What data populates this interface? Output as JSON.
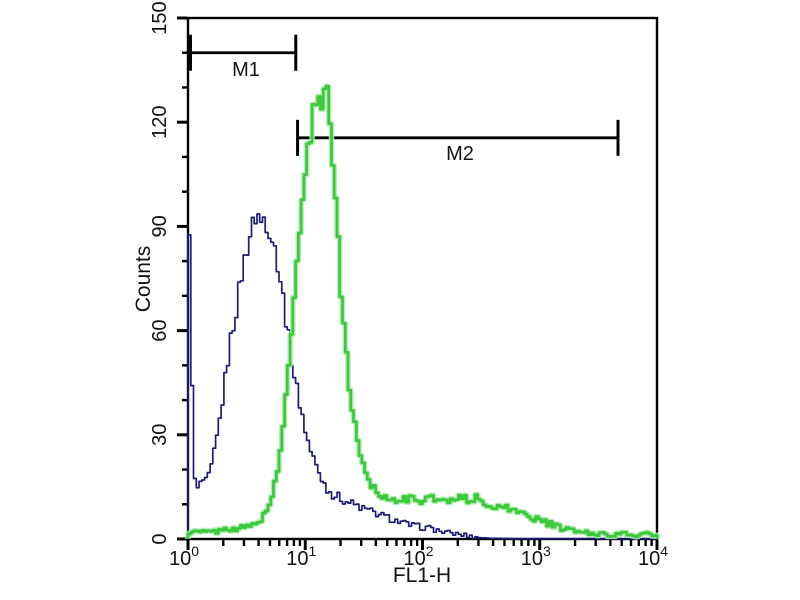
{
  "page": {
    "title": "Flow cytometry overlay histogram",
    "background": "#ffffff"
  },
  "chart_data": {
    "type": "line",
    "subtype": "flow-cytometry-overlay-histogram",
    "title": "",
    "xlabel": "FL1-H",
    "ylabel": "Counts",
    "x_scale": "log10",
    "x_range": [
      1,
      10000
    ],
    "x_tick_base": "10",
    "x_tick_exponents": [
      "0",
      "1",
      "2",
      "3",
      "4"
    ],
    "y_range": [
      0,
      150
    ],
    "y_ticks": [
      0,
      30,
      60,
      90,
      120,
      150
    ],
    "y_minor_step": 10,
    "grid": false,
    "legend": "none",
    "frame_color": "#000000",
    "markers": [
      {
        "label": "M1",
        "x_start": 1.05,
        "x_end": 8.3,
        "y_counts": 140
      },
      {
        "label": "M2",
        "x_start": 8.6,
        "x_end": 4650,
        "y_counts": 115.5
      }
    ],
    "series": [
      {
        "name": "blue-histogram",
        "color": "#1c1c78",
        "halo": null,
        "width": 1.7,
        "jitter": 1.0,
        "seed": 1,
        "ymax": 96,
        "peak": {
          "x": 4,
          "counts": 94
        },
        "axis_spike_counts": 86,
        "points": [
          [
            1.0,
            85
          ],
          [
            1.05,
            86
          ],
          [
            1.09,
            40
          ],
          [
            1.13,
            17
          ],
          [
            1.22,
            14
          ],
          [
            1.32,
            17
          ],
          [
            1.45,
            16
          ],
          [
            1.6,
            21
          ],
          [
            1.75,
            28
          ],
          [
            1.9,
            36
          ],
          [
            2.1,
            47
          ],
          [
            2.3,
            57
          ],
          [
            2.55,
            65
          ],
          [
            2.8,
            74
          ],
          [
            3.1,
            82
          ],
          [
            3.4,
            88
          ],
          [
            3.7,
            92
          ],
          [
            3.95,
            94
          ],
          [
            4.15,
            90
          ],
          [
            4.4,
            93
          ],
          [
            4.7,
            91
          ],
          [
            5.0,
            89
          ],
          [
            5.4,
            85
          ],
          [
            5.8,
            80
          ],
          [
            6.2,
            74
          ],
          [
            6.7,
            66
          ],
          [
            7.2,
            58
          ],
          [
            7.8,
            50
          ],
          [
            8.5,
            43
          ],
          [
            9.3,
            37
          ],
          [
            10.2,
            30
          ],
          [
            11.2,
            25
          ],
          [
            12.4,
            21
          ],
          [
            13.6,
            18
          ],
          [
            15,
            15
          ],
          [
            17,
            13
          ],
          [
            19.5,
            12
          ],
          [
            22,
            11
          ],
          [
            26,
            10
          ],
          [
            30,
            9
          ],
          [
            36,
            8
          ],
          [
            43,
            7
          ],
          [
            52,
            6
          ],
          [
            63,
            5
          ],
          [
            78,
            4
          ],
          [
            95,
            3.5
          ],
          [
            120,
            3
          ],
          [
            150,
            2
          ],
          [
            190,
            1.5
          ],
          [
            240,
            1
          ],
          [
            300,
            0.4
          ],
          [
            400,
            0.2
          ],
          [
            600,
            0.1
          ],
          [
            10000,
            0.1
          ]
        ]
      },
      {
        "name": "green-histogram",
        "color": "#3cc83c",
        "halo": "#aeeaae",
        "width": 2.7,
        "jitter": 0.85,
        "seed": 2,
        "ymax": 132,
        "peak": {
          "x": 15,
          "counts": 131
        },
        "axis_spike_counts": 0,
        "points": [
          [
            1.0,
            2
          ],
          [
            1.4,
            2
          ],
          [
            1.8,
            2.2
          ],
          [
            2.2,
            3
          ],
          [
            2.7,
            3
          ],
          [
            3.2,
            3.5
          ],
          [
            3.8,
            4.5
          ],
          [
            4.3,
            6
          ],
          [
            4.8,
            9
          ],
          [
            5.3,
            13
          ],
          [
            5.8,
            19
          ],
          [
            6.3,
            28
          ],
          [
            6.8,
            40
          ],
          [
            7.3,
            53
          ],
          [
            7.9,
            67
          ],
          [
            8.5,
            80
          ],
          [
            9.2,
            93
          ],
          [
            10,
            105
          ],
          [
            10.8,
            114
          ],
          [
            11.6,
            121
          ],
          [
            12.5,
            127
          ],
          [
            13.4,
            130
          ],
          [
            14.1,
            125
          ],
          [
            14.7,
            131
          ],
          [
            15.4,
            129
          ],
          [
            16.2,
            122
          ],
          [
            17,
            112
          ],
          [
            18,
            99
          ],
          [
            19.2,
            84
          ],
          [
            20.5,
            69
          ],
          [
            22,
            56
          ],
          [
            23.7,
            45
          ],
          [
            25.5,
            36
          ],
          [
            28,
            28
          ],
          [
            31,
            22
          ],
          [
            34,
            18
          ],
          [
            38,
            15
          ],
          [
            43,
            13
          ],
          [
            49,
            12
          ],
          [
            56,
            11
          ],
          [
            64,
            12
          ],
          [
            73,
            11
          ],
          [
            84,
            12
          ],
          [
            97,
            11
          ],
          [
            112,
            12
          ],
          [
            130,
            11
          ],
          [
            150,
            12
          ],
          [
            175,
            11
          ],
          [
            205,
            13
          ],
          [
            240,
            11
          ],
          [
            280,
            12
          ],
          [
            330,
            10
          ],
          [
            390,
            10
          ],
          [
            460,
            9
          ],
          [
            540,
            9
          ],
          [
            640,
            8
          ],
          [
            760,
            7
          ],
          [
            900,
            6
          ],
          [
            1080,
            5
          ],
          [
            1300,
            4
          ],
          [
            1560,
            3
          ],
          [
            1900,
            2.5
          ],
          [
            2300,
            2
          ],
          [
            2800,
            1.5
          ],
          [
            3400,
            1.5
          ],
          [
            4200,
            1.2
          ],
          [
            5200,
            1.5
          ],
          [
            6400,
            1
          ],
          [
            8000,
            1.5
          ],
          [
            10000,
            1
          ]
        ]
      }
    ]
  }
}
